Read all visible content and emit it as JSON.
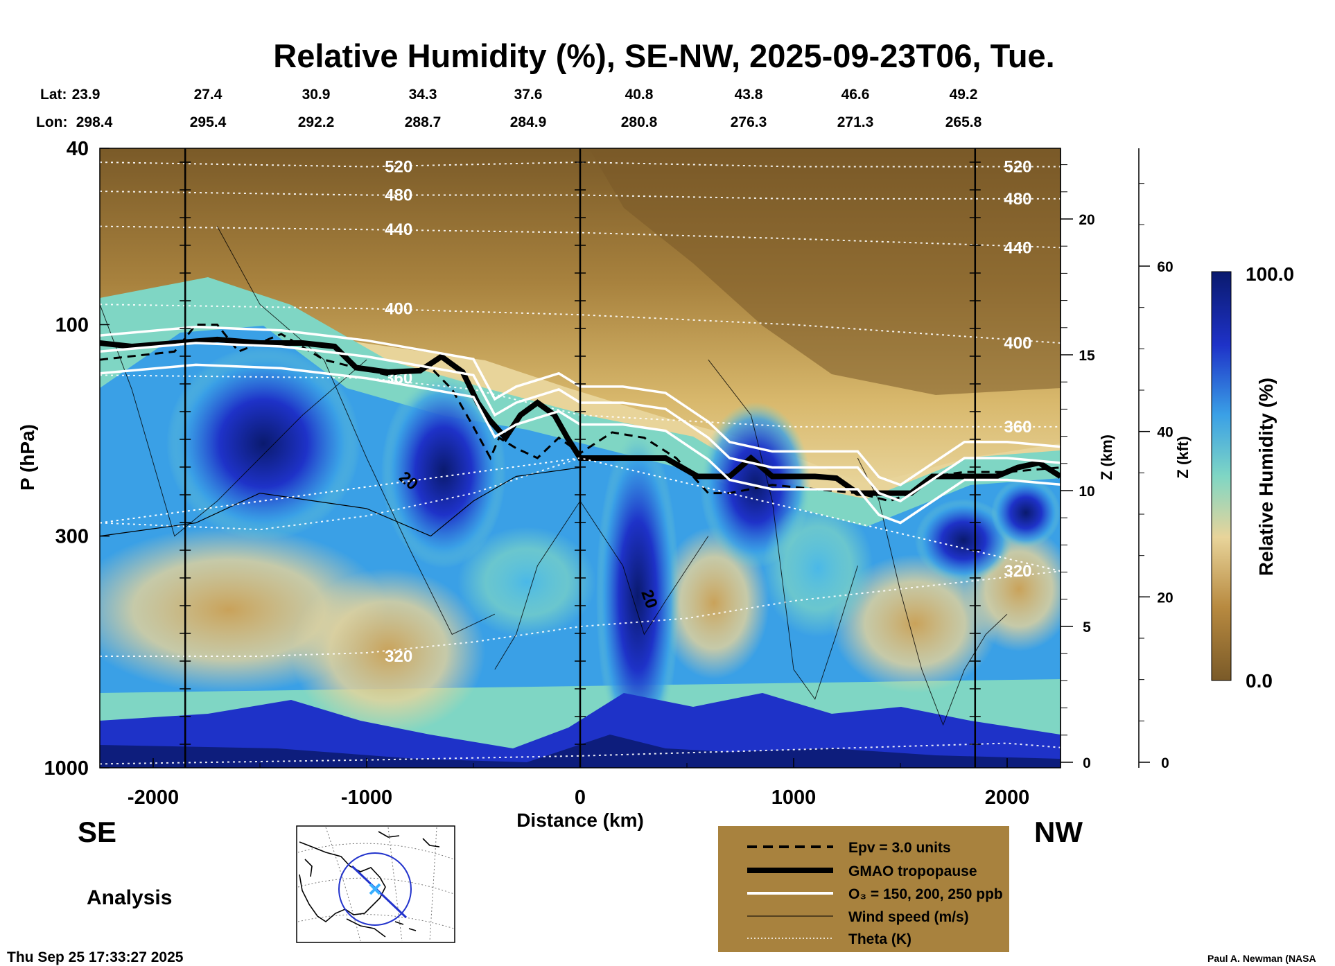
{
  "chart_data": {
    "type": "heatmap",
    "title": "Relative Humidity (%), SE-NW, 2025-09-23T06, Tue.",
    "xlabel": "Distance (km)",
    "ylabel": "P (hPa)",
    "y2label": "Z (km)",
    "y3label": "Z (kft)",
    "colorbar_label": "Relative Humidity (%)",
    "colorbar_max": "100.0",
    "colorbar_min": "0.0",
    "colorbar_range": [
      0,
      100
    ],
    "xlim": [
      -2250,
      2250
    ],
    "ylim": [
      1000,
      40
    ],
    "y_scale": "log",
    "x_ticks": [
      "-2000",
      "-1000",
      "0",
      "1000",
      "2000"
    ],
    "x_tick_values": [
      -2000,
      -1000,
      0,
      1000,
      2000
    ],
    "y_ticks": [
      "40",
      "100",
      "300",
      "1000"
    ],
    "y_tick_values": [
      40,
      100,
      300,
      1000
    ],
    "z_km_ticks": [
      "20",
      "15",
      "10",
      "5",
      "0"
    ],
    "z_km_values": [
      20,
      15,
      10,
      5,
      0
    ],
    "z_kft_ticks": [
      "60",
      "40",
      "20",
      "0"
    ],
    "z_kft_values": [
      60,
      40,
      20,
      0
    ],
    "lat_label": "Lat:",
    "lon_label": "Lon:",
    "lat": [
      "23.9",
      "27.4",
      "30.9",
      "34.3",
      "37.6",
      "40.8",
      "43.8",
      "46.6",
      "49.2"
    ],
    "lon": [
      "298.4",
      "295.4",
      "292.2",
      "288.7",
      "284.9",
      "280.8",
      "276.3",
      "271.3",
      "265.8"
    ],
    "vertical_lines_km": [
      -1850,
      0,
      1850
    ],
    "theta_contours": [
      {
        "label": "520",
        "x": [
          -2250,
          -1000,
          0,
          1000,
          2250
        ],
        "p": [
          43,
          44,
          43,
          44,
          44
        ]
      },
      {
        "label": "480",
        "x": [
          -2250,
          -1000,
          0,
          1000,
          2250
        ],
        "p": [
          50,
          51,
          51,
          52,
          52
        ]
      },
      {
        "label": "440",
        "x": [
          -2250,
          -1000,
          0,
          1000,
          2250
        ],
        "p": [
          60,
          61,
          62,
          64,
          67
        ]
      },
      {
        "label": "400",
        "x": [
          -2250,
          -1000,
          0,
          1000,
          2250
        ],
        "p": [
          90,
          92,
          95,
          100,
          110
        ]
      },
      {
        "label": "360",
        "x": [
          -2250,
          -1000,
          -500,
          0,
          1000,
          2250
        ],
        "p": [
          130,
          132,
          140,
          160,
          170,
          170
        ]
      },
      {
        "label": "320",
        "x": [
          -2250,
          -1500,
          -1000,
          -500,
          0,
          500,
          1000,
          2250
        ],
        "p": [
          560,
          560,
          550,
          520,
          480,
          460,
          420,
          360
        ]
      },
      {
        "label": "",
        "x": [
          -2250,
          -1500,
          -1000,
          -500,
          0
        ],
        "p": [
          280,
          290,
          270,
          240,
          200
        ]
      },
      {
        "label": "",
        "x": [
          -2250,
          -1000,
          0,
          1000,
          2000,
          2250
        ],
        "p": [
          980,
          960,
          940,
          910,
          880,
          900
        ]
      }
    ],
    "wind_labels": [
      "20",
      "20"
    ],
    "series": [
      {
        "name": "GMAO tropopause",
        "x": [
          -2250,
          -2100,
          -1900,
          -1700,
          -1500,
          -1300,
          -1150,
          -1050,
          -900,
          -750,
          -650,
          -550,
          -480,
          -420,
          -350,
          -280,
          -200,
          -120,
          -60,
          0,
          200,
          400,
          550,
          600,
          700,
          800,
          900,
          1000,
          1100,
          1200,
          1300,
          1450,
          1550,
          1650,
          1800,
          1950,
          2050,
          2150,
          2250
        ],
        "p": [
          110,
          112,
          110,
          108,
          110,
          110,
          112,
          125,
          128,
          127,
          118,
          128,
          150,
          165,
          180,
          160,
          150,
          160,
          180,
          200,
          200,
          200,
          220,
          220,
          220,
          200,
          220,
          220,
          220,
          222,
          240,
          240,
          240,
          220,
          220,
          220,
          210,
          205,
          220
        ]
      },
      {
        "name": "Epv = 3.0 units",
        "x": [
          -2250,
          -1900,
          -1800,
          -1700,
          -1600,
          -1400,
          -1200,
          -1050,
          -900,
          -700,
          -600,
          -500,
          -420,
          -380,
          -300,
          -200,
          -100,
          0,
          150,
          300,
          450,
          600,
          700,
          900,
          1100,
          1300,
          1450,
          1550,
          1650,
          1800,
          2000,
          2250
        ],
        "p": [
          120,
          115,
          100,
          100,
          115,
          105,
          120,
          125,
          130,
          125,
          140,
          170,
          200,
          180,
          190,
          200,
          180,
          195,
          175,
          180,
          200,
          240,
          240,
          230,
          235,
          240,
          250,
          240,
          220,
          215,
          215,
          210
        ]
      },
      {
        "name": "O₃ = 150, 200, 250 ppb",
        "x": [
          -2250,
          -1800,
          -1400,
          -1000,
          -700,
          -500,
          -400,
          -300,
          -100,
          0,
          200,
          400,
          600,
          700,
          900,
          1100,
          1300,
          1400,
          1500,
          1800,
          2000,
          2250
        ],
        "p": [
          115,
          110,
          112,
          118,
          125,
          130,
          160,
          150,
          140,
          150,
          150,
          155,
          180,
          200,
          210,
          210,
          210,
          240,
          250,
          200,
          200,
          205
        ]
      },
      {
        "name": "Wind speed (m/s)",
        "x": [
          -2250,
          -1800,
          -1500,
          -1000,
          -700,
          -500,
          -300,
          0
        ],
        "p": [
          300,
          280,
          240,
          260,
          300,
          250,
          220,
          210
        ]
      },
      {
        "name": "Theta (K)",
        "x": [
          -2250,
          0,
          2250
        ],
        "p": [
          280,
          200,
          360
        ]
      }
    ],
    "legend_placement": "bottom-right",
    "legend_entries": [
      "Epv = 3.0 units",
      "GMAO tropopause",
      "O₃ = 150, 200, 250 ppb",
      "Wind speed (m/s)",
      "Theta (K)"
    ],
    "left_direction": "SE",
    "right_direction": "NW",
    "mode": "Analysis",
    "timestamp": "Thu Sep 25 17:33:27 2025",
    "credit": "Paul A. Newman (NASA",
    "colors": {
      "dry_dark": "#7a5a28",
      "dry": "#c9a25a",
      "mid": "#e8d49a",
      "moist_light": "#7fd6c4",
      "moist": "#3aa0e6",
      "wet": "#1e32c8",
      "saturated": "#0a1a6e",
      "legend_bg": "#a8823e"
    }
  }
}
